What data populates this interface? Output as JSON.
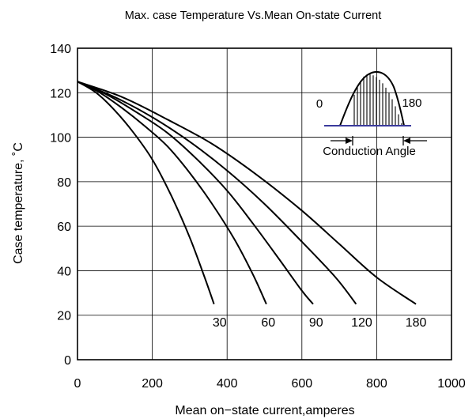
{
  "chart_data": {
    "type": "line",
    "title": "Max. case Temperature  Vs.Mean On-state  Current",
    "xlabel": "Mean on−state current,amperes",
    "ylabel": "Case temperature, ˚C",
    "xlim": [
      0,
      1000
    ],
    "ylim": [
      0,
      140
    ],
    "xticks": [
      0,
      200,
      400,
      600,
      800,
      1000
    ],
    "yticks": [
      0,
      20,
      40,
      60,
      80,
      100,
      120,
      140
    ],
    "grid": true,
    "series": [
      {
        "name": "30",
        "label_at": [
          380,
          15
        ],
        "points": [
          [
            0,
            125
          ],
          [
            50,
            120
          ],
          [
            100,
            112
          ],
          [
            150,
            102
          ],
          [
            200,
            90
          ],
          [
            250,
            74
          ],
          [
            300,
            55
          ],
          [
            340,
            37
          ],
          [
            365,
            25
          ]
        ]
      },
      {
        "name": "60",
        "label_at": [
          510,
          15
        ],
        "points": [
          [
            0,
            125
          ],
          [
            60,
            120
          ],
          [
            120,
            113
          ],
          [
            180,
            105
          ],
          [
            240,
            96
          ],
          [
            300,
            84
          ],
          [
            360,
            70
          ],
          [
            420,
            54
          ],
          [
            470,
            38
          ],
          [
            505,
            25
          ]
        ]
      },
      {
        "name": "90",
        "label_at": [
          638,
          15
        ],
        "points": [
          [
            0,
            125
          ],
          [
            80,
            119
          ],
          [
            160,
            111
          ],
          [
            240,
            102
          ],
          [
            320,
            90
          ],
          [
            400,
            76
          ],
          [
            470,
            61
          ],
          [
            540,
            45
          ],
          [
            600,
            31
          ],
          [
            630,
            25
          ]
        ]
      },
      {
        "name": "120",
        "label_at": [
          760,
          15
        ],
        "points": [
          [
            0,
            125
          ],
          [
            100,
            118
          ],
          [
            200,
            109
          ],
          [
            300,
            98
          ],
          [
            400,
            85
          ],
          [
            500,
            70
          ],
          [
            600,
            53
          ],
          [
            690,
            37
          ],
          [
            745,
            25
          ]
        ]
      },
      {
        "name": "180",
        "label_at": [
          905,
          15
        ],
        "points": [
          [
            0,
            125
          ],
          [
            120,
            118
          ],
          [
            240,
            108
          ],
          [
            360,
            97
          ],
          [
            480,
            83
          ],
          [
            600,
            67
          ],
          [
            700,
            52
          ],
          [
            800,
            37
          ],
          [
            905,
            25
          ]
        ]
      }
    ],
    "inset": {
      "left_label": "0",
      "right_label": "180",
      "caption": "Conduction Angle"
    }
  },
  "colors": {
    "baseline": "#3a3a9c",
    "ink": "#000000"
  }
}
